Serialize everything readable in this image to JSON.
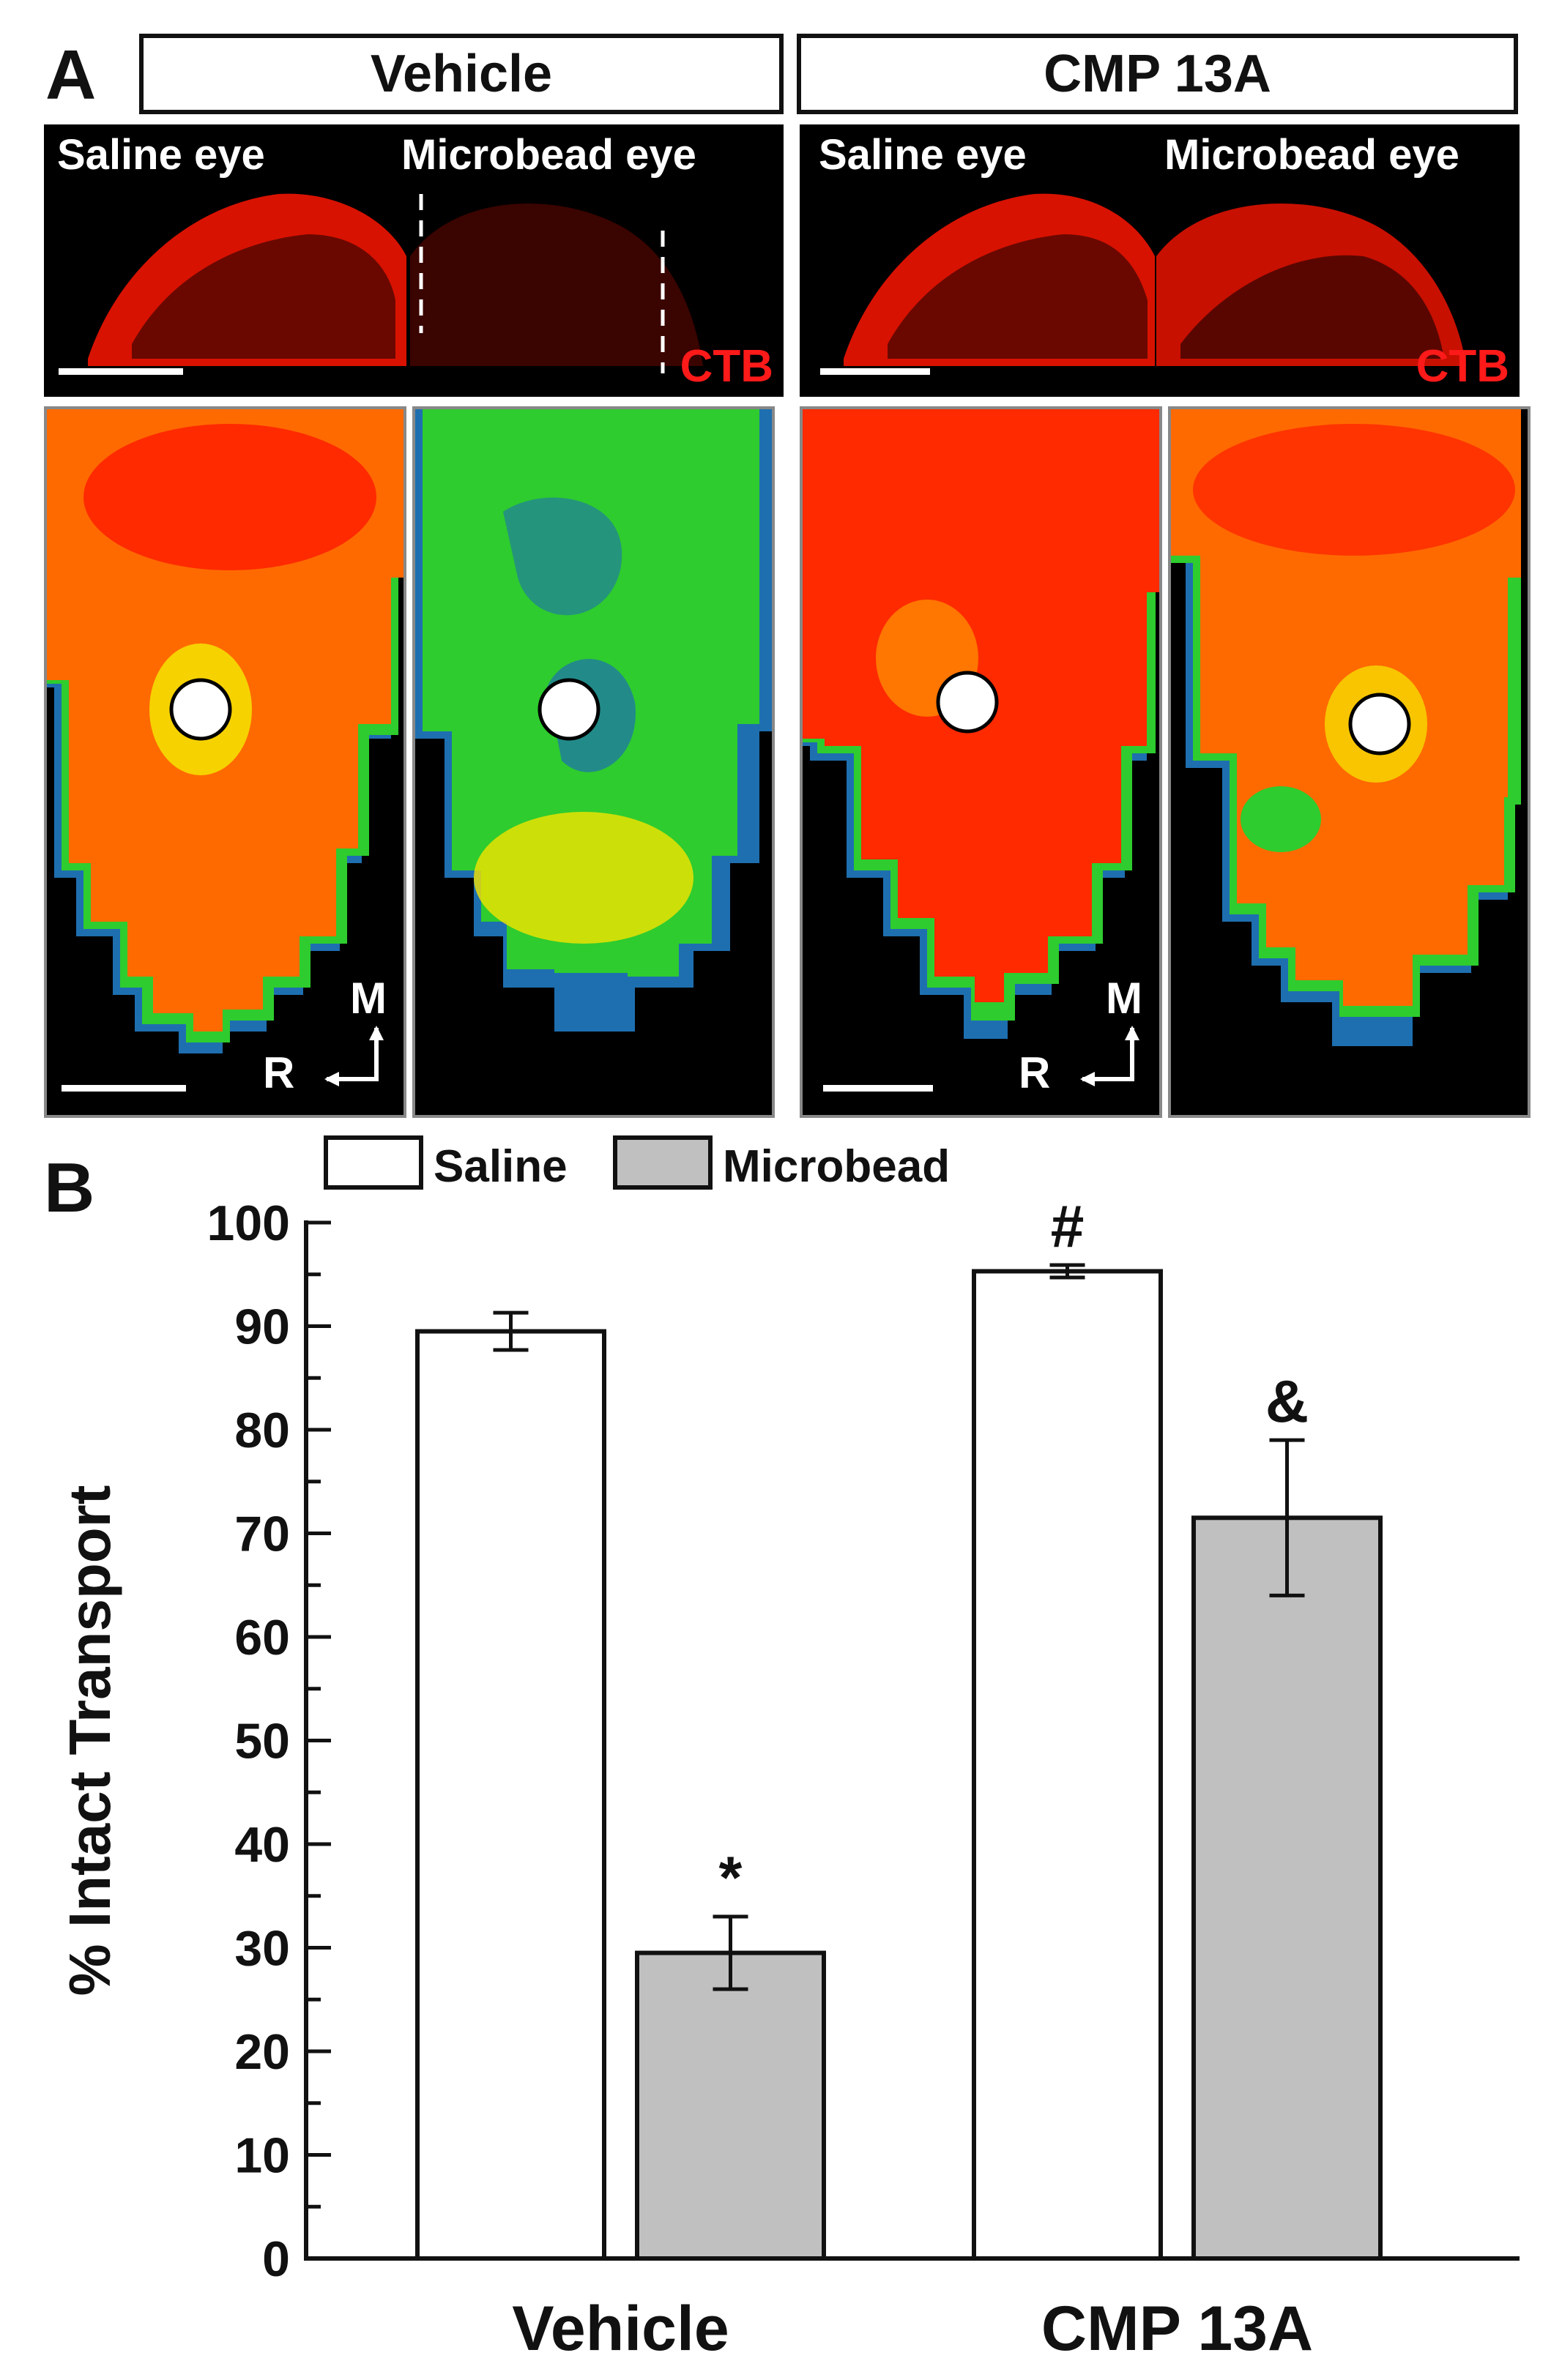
{
  "panel_a": {
    "letter": "A",
    "groups": [
      {
        "title": "Vehicle",
        "saline_label": "Saline eye",
        "microbead_label": "Microbead eye",
        "stain": "CTB"
      },
      {
        "title": "CMP 13A",
        "saline_label": "Saline eye",
        "microbead_label": "Microbead eye",
        "stain": "CTB"
      }
    ],
    "orientation": {
      "medial": "M",
      "rostral": "R"
    }
  },
  "colors": {
    "red": "#ff2a00",
    "orange": "#ff6a00",
    "yellow": "#f5e400",
    "green": "#2ecc2e",
    "blue": "#1e6fb0",
    "saline_fill": "#ffffff",
    "microbead_fill": "#c0c0c0"
  },
  "chart_data": {
    "type": "bar",
    "panel_letter": "B",
    "categories": [
      "Vehicle",
      "CMP 13A"
    ],
    "series": [
      {
        "name": "Saline",
        "values": [
          89.5,
          95.3
        ],
        "errors": [
          1.8,
          0.6
        ],
        "color": "#ffffff"
      },
      {
        "name": "Microbead",
        "values": [
          29.5,
          71.5
        ],
        "errors": [
          3.5,
          7.5
        ],
        "color": "#c0c0c0"
      }
    ],
    "annotations": [
      {
        "category": "Vehicle",
        "series": "Microbead",
        "text": "*"
      },
      {
        "category": "CMP 13A",
        "series": "Saline",
        "text": "#"
      },
      {
        "category": "CMP 13A",
        "series": "Microbead",
        "text": "&"
      }
    ],
    "ylabel": "% Intact Transport",
    "xlabel": "",
    "ylim": [
      0,
      100
    ],
    "yticks": [
      "0",
      "10",
      "20",
      "30",
      "40",
      "50",
      "60",
      "70",
      "80",
      "90",
      "100"
    ],
    "legend_position": "top"
  }
}
